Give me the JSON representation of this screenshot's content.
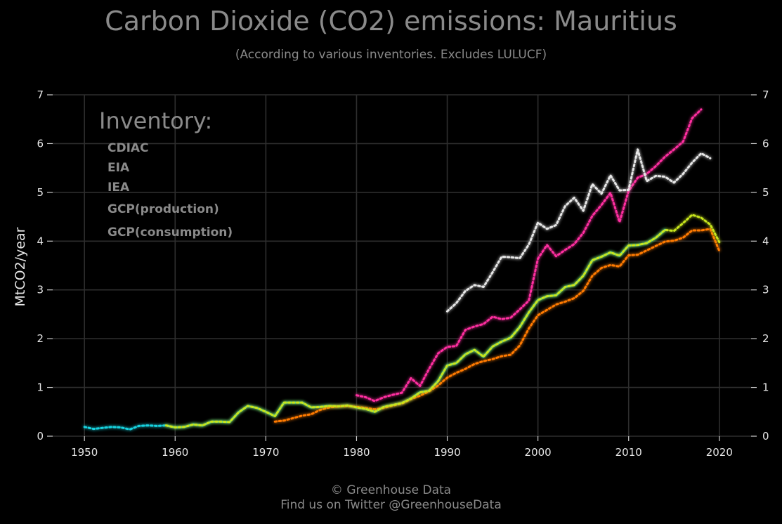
{
  "header": {
    "title": "Carbon Dioxide (CO2) emissions: Mauritius",
    "subtitle": "(According to various inventories. Excludes LULUCF)"
  },
  "footer": {
    "line1": "© Greenhouse Data",
    "line2": "Find us on Twitter @GreenhouseData"
  },
  "chart_data": {
    "type": "line",
    "title": "Carbon Dioxide (CO2) emissions: Mauritius",
    "subtitle": "(According to various inventories. Excludes LULUCF)",
    "xlabel": "",
    "ylabel": "MtCO2/year",
    "xlim": [
      1946.5,
      2023.5
    ],
    "ylim": [
      0,
      7
    ],
    "x_ticks": [
      1950,
      1960,
      1970,
      1980,
      1990,
      2000,
      2010,
      2020
    ],
    "y_ticks": [
      0,
      1,
      2,
      3,
      4,
      5,
      6,
      7
    ],
    "grid": true,
    "legend_title": "Inventory:",
    "legend_position": "top-left",
    "series": [
      {
        "name": "CDIAC",
        "color": "#19d3e0",
        "x": [
          1950,
          1951,
          1952,
          1953,
          1954,
          1955,
          1956,
          1957,
          1958,
          1959,
          1960,
          1961,
          1962,
          1963,
          1964,
          1965,
          1966,
          1967,
          1968,
          1969,
          1970,
          1971,
          1972,
          1973,
          1974,
          1975,
          1976,
          1977,
          1978,
          1979,
          1980,
          1981,
          1982,
          1983,
          1984,
          1985,
          1986,
          1987,
          1988,
          1989,
          1990,
          1991,
          1992,
          1993,
          1994,
          1995,
          1996,
          1997,
          1998,
          1999,
          2000,
          2001,
          2002,
          2003,
          2004,
          2005,
          2006,
          2007,
          2008,
          2009,
          2010,
          2011,
          2012,
          2013,
          2014
        ],
        "values": [
          0.19,
          0.15,
          0.17,
          0.19,
          0.18,
          0.14,
          0.21,
          0.22,
          0.21,
          0.22,
          0.18,
          0.19,
          0.24,
          0.22,
          0.3,
          0.3,
          0.29,
          0.49,
          0.62,
          0.58,
          0.5,
          0.41,
          0.69,
          0.69,
          0.69,
          0.59,
          0.6,
          0.62,
          0.61,
          0.63,
          0.59,
          0.56,
          0.5,
          0.6,
          0.64,
          0.68,
          0.77,
          0.9,
          0.93,
          1.13,
          1.45,
          1.5,
          1.68,
          1.77,
          1.63,
          1.84,
          1.94,
          2.02,
          2.24,
          2.54,
          2.79,
          2.87,
          2.89,
          3.06,
          3.1,
          3.29,
          3.61,
          3.68,
          3.77,
          3.7,
          3.91,
          3.92,
          3.96,
          4.07,
          4.23
        ]
      },
      {
        "name": "EIA",
        "color": "#ff2fa0",
        "x": [
          1980,
          1981,
          1982,
          1983,
          1984,
          1985,
          1986,
          1987,
          1988,
          1989,
          1990,
          1991,
          1992,
          1993,
          1994,
          1995,
          1996,
          1997,
          1998,
          1999,
          2000,
          2001,
          2002,
          2003,
          2004,
          2005,
          2006,
          2007,
          2008,
          2009,
          2010,
          2011,
          2012,
          2013,
          2014,
          2015,
          2016,
          2017,
          2018
        ],
        "values": [
          0.84,
          0.8,
          0.72,
          0.8,
          0.85,
          0.89,
          1.19,
          1.03,
          1.38,
          1.7,
          1.83,
          1.85,
          2.18,
          2.25,
          2.3,
          2.45,
          2.4,
          2.43,
          2.6,
          2.78,
          3.64,
          3.92,
          3.69,
          3.82,
          3.94,
          4.17,
          4.52,
          4.74,
          4.99,
          4.39,
          5.03,
          5.3,
          5.38,
          5.54,
          5.73,
          5.88,
          6.04,
          6.52,
          6.7
        ]
      },
      {
        "name": "IEA",
        "color": "#ff7a00",
        "x": [
          1971,
          1972,
          1973,
          1974,
          1975,
          1976,
          1977,
          1978,
          1979,
          1980,
          1981,
          1982,
          1983,
          1984,
          1985,
          1986,
          1987,
          1988,
          1989,
          1990,
          1991,
          1992,
          1993,
          1994,
          1995,
          1996,
          1997,
          1998,
          1999,
          2000,
          2001,
          2002,
          2003,
          2004,
          2005,
          2006,
          2007,
          2008,
          2009,
          2010,
          2011,
          2012,
          2013,
          2014,
          2015,
          2016,
          2017,
          2018,
          2019,
          2020
        ],
        "values": [
          0.3,
          0.32,
          0.37,
          0.42,
          0.45,
          0.54,
          0.59,
          0.61,
          0.62,
          0.6,
          0.58,
          0.55,
          0.58,
          0.63,
          0.67,
          0.76,
          0.83,
          0.92,
          1.04,
          1.2,
          1.3,
          1.38,
          1.48,
          1.54,
          1.58,
          1.64,
          1.67,
          1.86,
          2.21,
          2.48,
          2.59,
          2.7,
          2.76,
          2.83,
          2.98,
          3.29,
          3.45,
          3.51,
          3.48,
          3.71,
          3.72,
          3.81,
          3.9,
          3.99,
          4.01,
          4.07,
          4.22,
          4.22,
          4.25,
          3.8
        ]
      },
      {
        "name": "GCP(production)",
        "color": "#c8e61e",
        "x": [
          1959,
          1960,
          1961,
          1962,
          1963,
          1964,
          1965,
          1966,
          1967,
          1968,
          1969,
          1970,
          1971,
          1972,
          1973,
          1974,
          1975,
          1976,
          1977,
          1978,
          1979,
          1980,
          1981,
          1982,
          1983,
          1984,
          1985,
          1986,
          1987,
          1988,
          1989,
          1990,
          1991,
          1992,
          1993,
          1994,
          1995,
          1996,
          1997,
          1998,
          1999,
          2000,
          2001,
          2002,
          2003,
          2004,
          2005,
          2006,
          2007,
          2008,
          2009,
          2010,
          2011,
          2012,
          2013,
          2014,
          2015,
          2016,
          2017,
          2018,
          2019,
          2020
        ],
        "values": [
          0.22,
          0.18,
          0.19,
          0.24,
          0.22,
          0.3,
          0.3,
          0.29,
          0.49,
          0.62,
          0.58,
          0.5,
          0.41,
          0.69,
          0.69,
          0.69,
          0.59,
          0.6,
          0.62,
          0.61,
          0.63,
          0.59,
          0.56,
          0.5,
          0.6,
          0.64,
          0.68,
          0.77,
          0.9,
          0.93,
          1.13,
          1.45,
          1.5,
          1.68,
          1.77,
          1.63,
          1.84,
          1.94,
          2.02,
          2.24,
          2.54,
          2.79,
          2.87,
          2.89,
          3.06,
          3.1,
          3.29,
          3.61,
          3.68,
          3.77,
          3.7,
          3.91,
          3.92,
          3.96,
          4.07,
          4.23,
          4.21,
          4.37,
          4.54,
          4.48,
          4.34,
          3.98
        ]
      },
      {
        "name": "GCP(consumption)",
        "color": "#e6e6e6",
        "x": [
          1990,
          1991,
          1992,
          1993,
          1994,
          1995,
          1996,
          1997,
          1998,
          1999,
          2000,
          2001,
          2002,
          2003,
          2004,
          2005,
          2006,
          2007,
          2008,
          2009,
          2010,
          2011,
          2012,
          2013,
          2014,
          2015,
          2016,
          2017,
          2018,
          2019
        ],
        "values": [
          2.56,
          2.73,
          2.98,
          3.1,
          3.06,
          3.36,
          3.68,
          3.67,
          3.65,
          3.93,
          4.38,
          4.25,
          4.33,
          4.72,
          4.89,
          4.62,
          5.17,
          4.97,
          5.35,
          5.04,
          5.05,
          5.88,
          5.23,
          5.34,
          5.32,
          5.2,
          5.38,
          5.61,
          5.8,
          5.7
        ]
      }
    ]
  }
}
